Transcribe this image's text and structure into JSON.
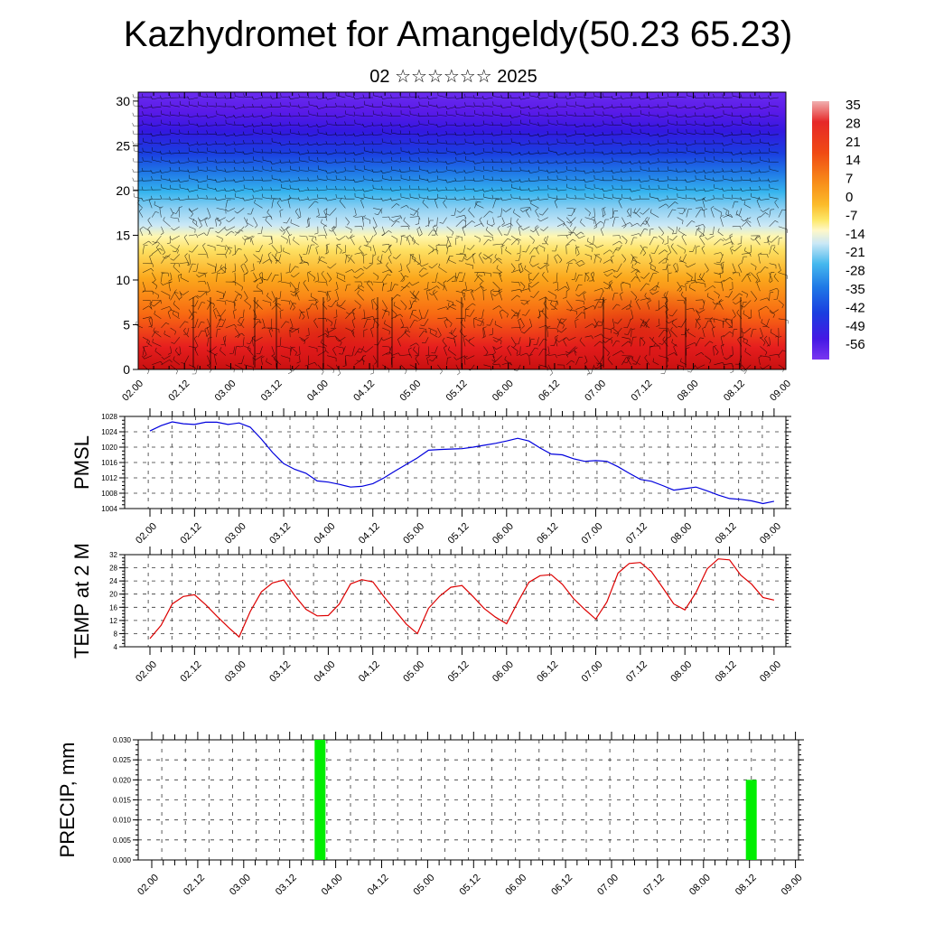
{
  "header": {
    "title": "Kazhydromet for Amangeldy(50.23 65.23)",
    "subtitle": "02 ☆☆☆☆☆☆ 2025"
  },
  "time_labels": [
    "02.00",
    "02.12",
    "03.00",
    "03.12",
    "04.00",
    "04.12",
    "05.00",
    "05.12",
    "06.00",
    "06.12",
    "07.00",
    "07.12",
    "08.00",
    "08.12",
    "09.00"
  ],
  "colorbar": {
    "labels": [
      "35",
      "28",
      "21",
      "14",
      "7",
      "0",
      "-7",
      "-14",
      "-21",
      "-28",
      "-35",
      "-42",
      "-49",
      "-56"
    ]
  },
  "chart_data": [
    {
      "type": "heatmap",
      "yticks": [
        0,
        5,
        10,
        15,
        20,
        25,
        30
      ],
      "ylim": [
        0,
        31
      ],
      "levels": [
        35,
        28,
        21,
        14,
        7,
        0,
        -7,
        -14,
        -21,
        -28,
        -35,
        -42,
        -49,
        -56
      ],
      "description_fields": "temperature cross-section with wind barbs"
    },
    {
      "type": "line",
      "ylabel": "PMSL",
      "ylim": [
        1004,
        1028
      ],
      "yticks": [
        1004,
        1008,
        1012,
        1016,
        1020,
        1024,
        1028
      ],
      "color": "#0000dd",
      "values": [
        1024.2,
        1025.6,
        1026.6,
        1026.1,
        1025.9,
        1026.5,
        1026.5,
        1025.9,
        1026.3,
        1025.2,
        1022.1,
        1018.6,
        1015.7,
        1014.2,
        1013.2,
        1011.2,
        1010.9,
        1010.3,
        1009.6,
        1009.8,
        1010.5,
        1012.0,
        1013.8,
        1015.5,
        1017.2,
        1019.2,
        1019.4,
        1019.5,
        1019.6,
        1020.0,
        1020.5,
        1021.0,
        1021.6,
        1022.3,
        1021.6,
        1019.8,
        1018.2,
        1018.0,
        1017.0,
        1016.3,
        1016.5,
        1016.3,
        1014.9,
        1013.2,
        1011.6,
        1011.1,
        1010.0,
        1008.8,
        1009.2,
        1009.6,
        1008.6,
        1007.5,
        1006.6,
        1006.4,
        1006.0,
        1005.3,
        1005.9
      ]
    },
    {
      "type": "line",
      "ylabel": "TEMP at 2 M",
      "ylim": [
        4,
        32
      ],
      "yticks": [
        4,
        8,
        12,
        16,
        20,
        24,
        28,
        32
      ],
      "color": "#dd0000",
      "values": [
        6.5,
        10.5,
        17.0,
        19.3,
        19.8,
        16.8,
        13.3,
        10.0,
        7.0,
        14.7,
        20.7,
        23.4,
        24.3,
        19.5,
        15.4,
        13.4,
        13.5,
        17.0,
        23.1,
        24.4,
        23.7,
        19.2,
        15.0,
        10.9,
        8.0,
        15.7,
        19.4,
        22.1,
        22.6,
        19.2,
        15.6,
        13.0,
        11.0,
        17.5,
        23.6,
        25.6,
        25.9,
        23.0,
        18.7,
        15.4,
        12.4,
        17.6,
        26.4,
        29.3,
        29.6,
        26.8,
        22.0,
        17.0,
        15.2,
        20.5,
        27.7,
        30.7,
        30.4,
        25.8,
        23.0,
        19.0,
        18.2
      ]
    },
    {
      "type": "bar",
      "ylabel": "PRECIP, mm",
      "ylim": [
        0.0,
        0.03
      ],
      "yticks": [
        "0.000",
        "0.005",
        "0.010",
        "0.015",
        "0.020",
        "0.025",
        "0.030"
      ],
      "color": "#00ee00",
      "bars": [
        {
          "t": 3.83,
          "value": 0.03
        },
        {
          "t": 8.52,
          "value": 0.02
        }
      ]
    }
  ]
}
